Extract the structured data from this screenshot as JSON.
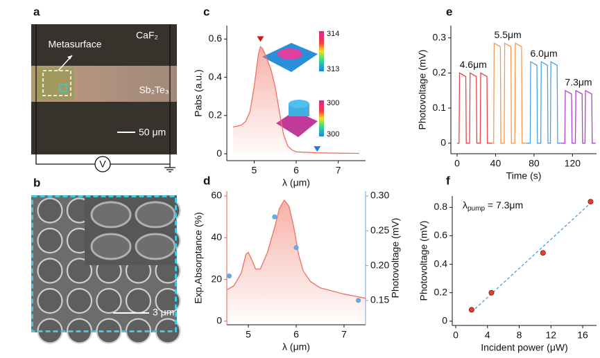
{
  "image_a": {
    "panel": "a",
    "metasurface": "Metasurface",
    "top_layer": "CaF₂",
    "stripe": "Sb₂Te₃",
    "scale_bar": "50 μm",
    "meter": "V"
  },
  "image_b": {
    "panel": "b",
    "scale_bar": "3 μm"
  },
  "chart_data": [
    {
      "panel": "c",
      "type": "line",
      "xlabel": "λ (μm)",
      "ylabel": "Pabs (a.u.)",
      "xlim": [
        4.35,
        7.65
      ],
      "ylim": [
        -0.036,
        0.67
      ],
      "xticks": [
        5,
        6,
        7
      ],
      "yticks": [
        0,
        0.2,
        0.4,
        0.6
      ],
      "series": [
        {
          "type": "line",
          "color": "#f07060",
          "fill": true,
          "x": [
            4.5,
            4.7,
            4.8,
            4.9,
            5.0,
            5.1,
            5.15,
            5.2,
            5.3,
            5.4,
            5.5,
            5.6,
            5.7,
            5.8,
            5.9,
            6.0,
            6.5,
            7.0,
            7.5
          ],
          "values": [
            0.14,
            0.15,
            0.17,
            0.22,
            0.35,
            0.52,
            0.56,
            0.55,
            0.5,
            0.44,
            0.35,
            0.22,
            0.1,
            0.04,
            0.02,
            0.01,
            0.005,
            0.003,
            0.002
          ]
        }
      ],
      "markers": [
        {
          "x": 5.15,
          "y": 0.6,
          "color": "#c0201a",
          "shape": "down"
        },
        {
          "x": 6.5,
          "y": 0.025,
          "color": "#2a7ad0",
          "shape": "down"
        }
      ],
      "insets": [
        {
          "top": "314",
          "bottom": "313"
        },
        {
          "top": "300",
          "bottom": "300"
        }
      ]
    },
    {
      "panel": "d",
      "type": "line",
      "xlabel": "λ (μm)",
      "ylabel": "Exp.Absorptance (%)",
      "y2label": "Photovoltage (mV)",
      "ylabel_color": "#e8604c",
      "y2label_color": "#6aa8e0",
      "xlim": [
        4.55,
        7.45
      ],
      "ylim": [
        -1.7,
        62.3
      ],
      "y2lim": [
        0.115,
        0.307
      ],
      "xticks": [
        5,
        6,
        7
      ],
      "yticks": [
        0,
        20,
        40,
        60
      ],
      "y2ticks": [
        {
          "value": 0.15,
          "label": "0.15"
        },
        {
          "value": 0.2,
          "label": "0.20"
        },
        {
          "value": 0.25,
          "label": "0.25"
        },
        {
          "value": 0.3,
          "label": "0.30"
        }
      ],
      "series": [
        {
          "type": "line",
          "color": "#f07060",
          "fill": true,
          "axis": "y",
          "x": [
            4.55,
            4.7,
            4.85,
            4.95,
            5.0,
            5.1,
            5.15,
            5.25,
            5.4,
            5.55,
            5.65,
            5.75,
            5.85,
            5.95,
            6.05,
            6.15,
            6.3,
            6.5,
            7.0,
            7.45
          ],
          "values": [
            15,
            17,
            23,
            32,
            33,
            28,
            25,
            25,
            33,
            45,
            54,
            58,
            55,
            45,
            32,
            24,
            19,
            16,
            13,
            11
          ]
        },
        {
          "type": "scatter",
          "color": "#6aa8e0",
          "axis": "y2",
          "x": [
            4.6,
            5.55,
            6.0,
            7.3
          ],
          "values": [
            0.185,
            0.27,
            0.226,
            0.15
          ]
        }
      ]
    },
    {
      "panel": "e",
      "type": "line",
      "xlabel": "Time (s)",
      "ylabel": "Photovoltage (mV)",
      "xlim": [
        -6.5,
        145
      ],
      "ylim": [
        -0.03,
        0.335
      ],
      "xticks": [
        0,
        40,
        80,
        120
      ],
      "yticks": [
        0,
        0.1,
        0.2,
        0.3
      ],
      "series": [
        {
          "type": "line",
          "name": "4.6μm",
          "color": "#e8424a",
          "x": [
            0,
            2,
            2.5,
            9,
            9.5,
            13,
            13.5,
            20,
            20.5,
            24,
            24.5,
            31,
            31.5,
            36
          ],
          "values": [
            0,
            0,
            0.2,
            0.19,
            0,
            0,
            0.2,
            0.19,
            0,
            0,
            0.2,
            0.19,
            0,
            0
          ]
        },
        {
          "type": "line",
          "name": "5.5μm",
          "color": "#f59a50",
          "x": [
            36,
            38,
            38.5,
            45,
            45.5,
            49,
            49.5,
            56,
            56.5,
            60,
            60.5,
            67,
            67.5,
            72
          ],
          "values": [
            0,
            0,
            0.285,
            0.275,
            0,
            0,
            0.285,
            0.275,
            0,
            0,
            0.285,
            0.275,
            0,
            0
          ]
        },
        {
          "type": "line",
          "name": "6.0μm",
          "color": "#4aa0e8",
          "x": [
            72,
            76,
            76.5,
            83,
            83.5,
            87,
            87.5,
            94,
            94.5,
            97,
            97.5,
            104,
            104.5,
            108
          ],
          "values": [
            0,
            0,
            0.232,
            0.222,
            0,
            0,
            0.232,
            0.222,
            0,
            0,
            0.232,
            0.222,
            0,
            0
          ]
        },
        {
          "type": "line",
          "name": "7.3μm",
          "color": "#b040d0",
          "x": [
            108,
            112,
            112.5,
            119,
            119.5,
            123,
            123.5,
            130,
            130.5,
            133,
            133.5,
            140,
            140.5,
            144
          ],
          "values": [
            0,
            0,
            0.15,
            0.14,
            0,
            0,
            0.15,
            0.14,
            0,
            0,
            0.15,
            0.14,
            0,
            0
          ]
        }
      ]
    },
    {
      "panel": "f",
      "type": "scatter",
      "xlabel": "Incident power (μW)",
      "ylabel": "Photovoltage (mV)",
      "annotation": {
        "base": "λ",
        "sub": "pump",
        "rest": " = 7.3μm"
      },
      "xlim": [
        -0.44,
        17.75
      ],
      "ylim": [
        -0.03,
        0.88
      ],
      "xticks": [
        0,
        4,
        8,
        12,
        16
      ],
      "yticks": [
        0,
        0.2,
        0.4,
        0.6,
        0.8
      ],
      "series": [
        {
          "type": "line",
          "color": "#4a9ae0",
          "dash": true,
          "x": [
            2,
            17
          ],
          "values": [
            0.065,
            0.83
          ]
        },
        {
          "type": "scatter",
          "color": "#e04030",
          "x": [
            2,
            4.5,
            11,
            17
          ],
          "values": [
            0.08,
            0.2,
            0.48,
            0.84
          ]
        }
      ]
    }
  ]
}
